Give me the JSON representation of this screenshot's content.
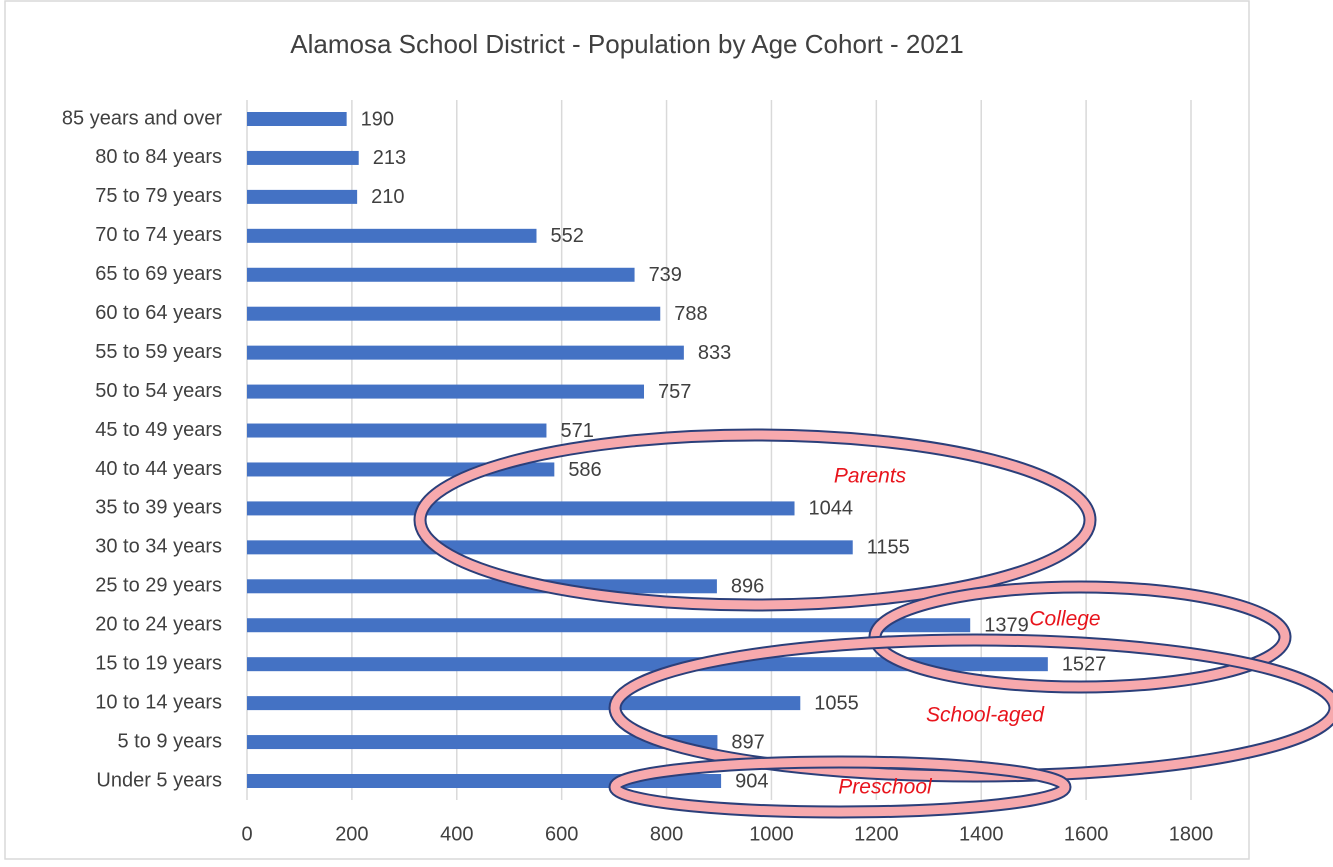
{
  "chart_data": {
    "type": "bar",
    "orientation": "horizontal",
    "title": "Alamosa School District - Population by Age Cohort - 2021",
    "categories": [
      "85 years and over",
      "80 to 84 years",
      "75 to 79 years",
      "70 to 74 years",
      "65 to 69 years",
      "60 to 64 years",
      "55 to 59 years",
      "50 to 54 years",
      "45 to 49 years",
      "40 to 44 years",
      "35 to 39 years",
      "30 to 34 years",
      "25 to 29 years",
      "20 to 24 years",
      "15 to 19 years",
      "10 to 14 years",
      "5 to 9 years",
      "Under 5 years"
    ],
    "values": [
      190,
      213,
      210,
      552,
      739,
      788,
      833,
      757,
      571,
      586,
      1044,
      1155,
      896,
      1379,
      1527,
      1055,
      897,
      904
    ],
    "color": "#4472c4",
    "xlim": [
      0,
      1800
    ],
    "xticks": [
      0,
      200,
      400,
      600,
      800,
      1000,
      1200,
      1400,
      1600,
      1800
    ],
    "grid": true,
    "annotations": [
      "Parents",
      "College",
      "School-aged",
      "Preschool"
    ]
  }
}
